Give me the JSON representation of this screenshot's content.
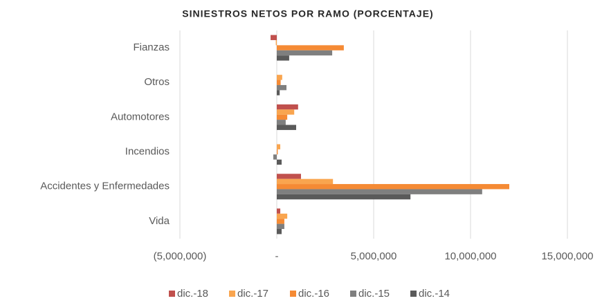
{
  "chart_data": {
    "type": "barh",
    "title": "SINIESTROS NETOS POR RAMO (PORCENTAJE)",
    "categories": [
      "Fianzas",
      "Otros",
      "Automotores",
      "Incendios",
      "Accidentes y Enfermedades",
      "Vida"
    ],
    "series": [
      {
        "name": "dic.-18",
        "color": "#c0504d",
        "values": [
          -320000,
          0,
          1100000,
          0,
          1250000,
          180000
        ]
      },
      {
        "name": "dic.-17",
        "color": "#f9a54f",
        "values": [
          -50000,
          280000,
          900000,
          180000,
          2900000,
          540000
        ]
      },
      {
        "name": "dic.-16",
        "color": "#f58a34",
        "values": [
          3460000,
          200000,
          540000,
          50000,
          12000000,
          390000
        ]
      },
      {
        "name": "dic.-15",
        "color": "#7f7f7f",
        "values": [
          2860000,
          500000,
          460000,
          -180000,
          10600000,
          390000
        ]
      },
      {
        "name": "dic.-14",
        "color": "#5a5a5a",
        "values": [
          640000,
          150000,
          1000000,
          250000,
          6900000,
          250000
        ]
      }
    ],
    "xlim": [
      -5000000,
      15000000
    ],
    "xticks": [
      {
        "value": -5000000,
        "label": "(5,000,000)"
      },
      {
        "value": 0,
        "label": "-"
      },
      {
        "value": 5000000,
        "label": "5,000,000"
      },
      {
        "value": 10000000,
        "label": "10,000,000"
      },
      {
        "value": 15000000,
        "label": "15,000,000"
      }
    ],
    "grid": true
  }
}
